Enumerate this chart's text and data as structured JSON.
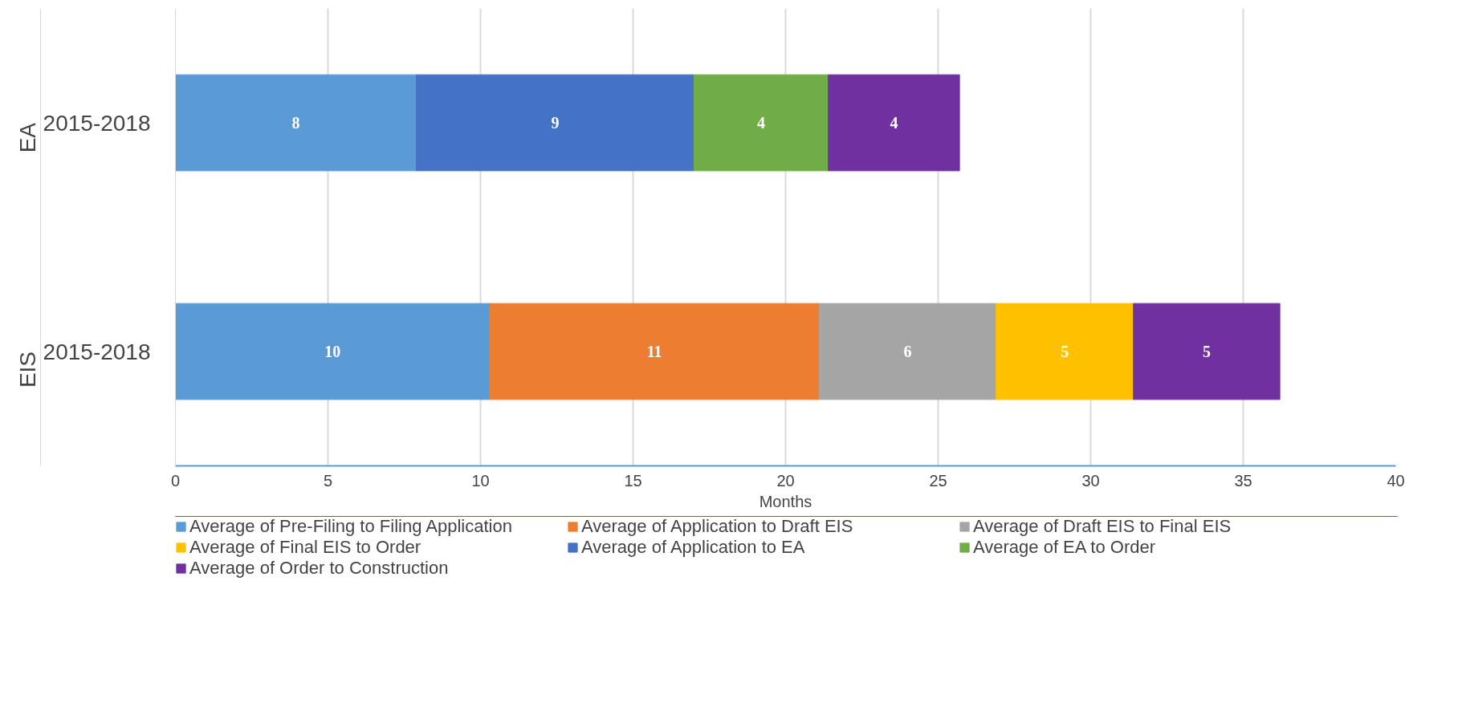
{
  "chart_data": {
    "type": "bar",
    "orientation": "horizontal",
    "stacked": true,
    "categories": [
      "2015-2018",
      "2015-2018"
    ],
    "annotations": [
      "EA",
      "EIS"
    ],
    "xlabel": "Months",
    "xlim": [
      0,
      40
    ],
    "xticks": [
      0,
      5,
      10,
      15,
      20,
      25,
      30,
      35,
      40
    ],
    "grid": "x",
    "legend": "bottom",
    "series": [
      {
        "name": "Average of Pre-Filing to Filing Application",
        "color": "#5b9bd5",
        "values": [
          7.9,
          10.3
        ],
        "value_labels": [
          "8",
          "10"
        ]
      },
      {
        "name": "Average of Application to Draft EIS",
        "color": "#ed7d31",
        "values": [
          null,
          10.8
        ],
        "value_labels": [
          null,
          "11"
        ]
      },
      {
        "name": "Average of Draft EIS to Final EIS",
        "color": "#a5a5a5",
        "values": [
          null,
          5.8
        ],
        "value_labels": [
          null,
          "6"
        ]
      },
      {
        "name": "Average of Final EIS to Order",
        "color": "#ffc000",
        "values": [
          null,
          4.5
        ],
        "value_labels": [
          null,
          "5"
        ]
      },
      {
        "name": "Average of Application to EA",
        "color": "#4472c4",
        "values": [
          9.1,
          null
        ],
        "value_labels": [
          "9",
          null
        ]
      },
      {
        "name": "Average of EA to Order",
        "color": "#70ad47",
        "values": [
          4.4,
          null
        ],
        "value_labels": [
          "4",
          null
        ]
      },
      {
        "name": "Average of Order to Construction",
        "color": "#7030a0",
        "values": [
          4.3,
          4.8
        ],
        "value_labels": [
          "4",
          "5"
        ]
      }
    ]
  }
}
